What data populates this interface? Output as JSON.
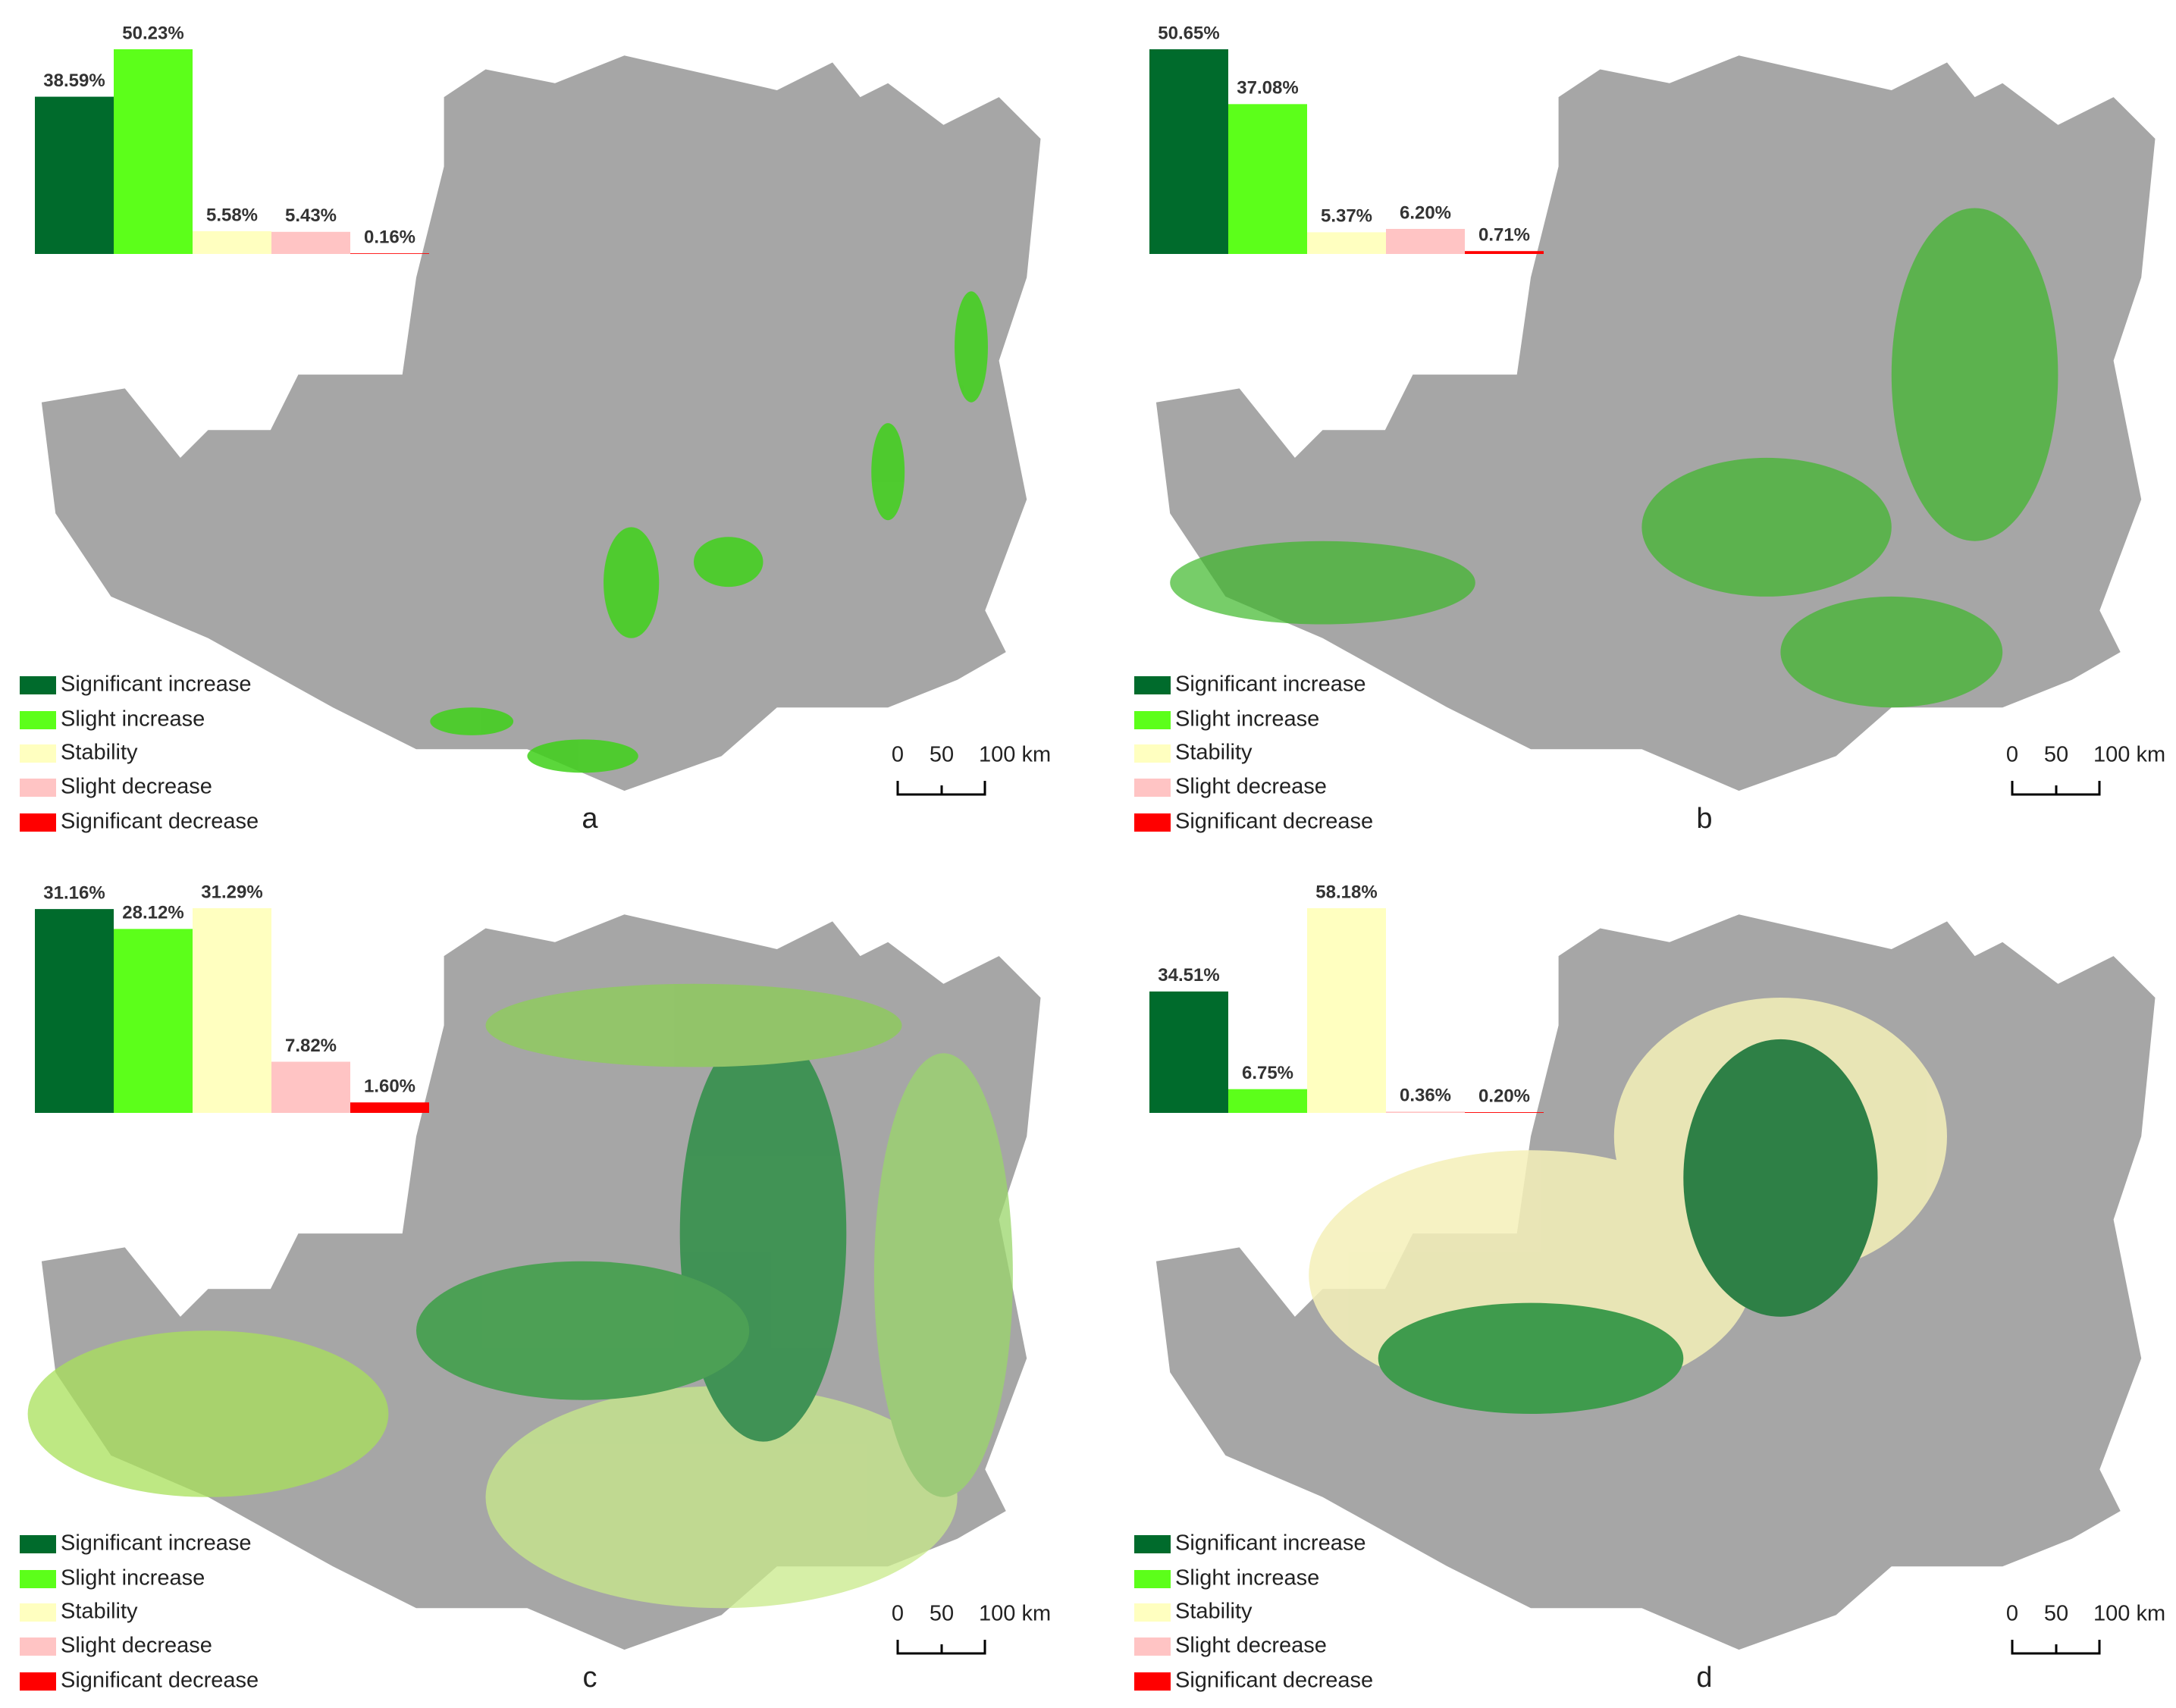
{
  "colors": [
    "#006b2c",
    "#5cff1a",
    "#ffffc0",
    "#ffc4c4",
    "#ff0000"
  ],
  "panels": [
    {
      "label": "a",
      "categories": [
        "Significant increase",
        "Slight increase",
        "Stability",
        "Slight decrease",
        "Significant decrease"
      ],
      "values": [
        38.59,
        50.23,
        5.58,
        5.43,
        0.16
      ],
      "value_labels": [
        "38.59%",
        "50.23%",
        "5.58%",
        "5.43%",
        "0.16%"
      ],
      "scale_labels": [
        "0",
        "50",
        "100 km"
      ]
    },
    {
      "label": "b",
      "categories": [
        "Significant increase",
        "Slight increase",
        "Stability",
        "Slight decrease",
        "Significant decrease"
      ],
      "values": [
        50.65,
        37.08,
        5.37,
        6.2,
        0.71
      ],
      "value_labels": [
        "50.65%",
        "37.08%",
        "5.37%",
        "6.20%",
        "0.71%"
      ],
      "scale_labels": [
        "0",
        "50",
        "100 km"
      ]
    },
    {
      "label": "c",
      "categories": [
        "Significant increase",
        "Slight increase",
        "Stability",
        "Slight decrease",
        "Significant decrease"
      ],
      "values": [
        31.16,
        28.12,
        31.29,
        7.82,
        1.6
      ],
      "value_labels": [
        "31.16%",
        "28.12%",
        "31.29%",
        "7.82%",
        "1.60%"
      ],
      "scale_labels": [
        "0",
        "50",
        "100 km"
      ]
    },
    {
      "label": "d",
      "categories": [
        "Significant increase",
        "Slight increase",
        "Stability",
        "Slight decrease",
        "Significant decrease"
      ],
      "values": [
        34.51,
        6.75,
        58.18,
        0.36,
        0.2
      ],
      "value_labels": [
        "34.51%",
        "6.75%",
        "58.18%",
        "0.36%",
        "0.20%"
      ],
      "scale_labels": [
        "0",
        "50",
        "100 km"
      ]
    }
  ]
}
